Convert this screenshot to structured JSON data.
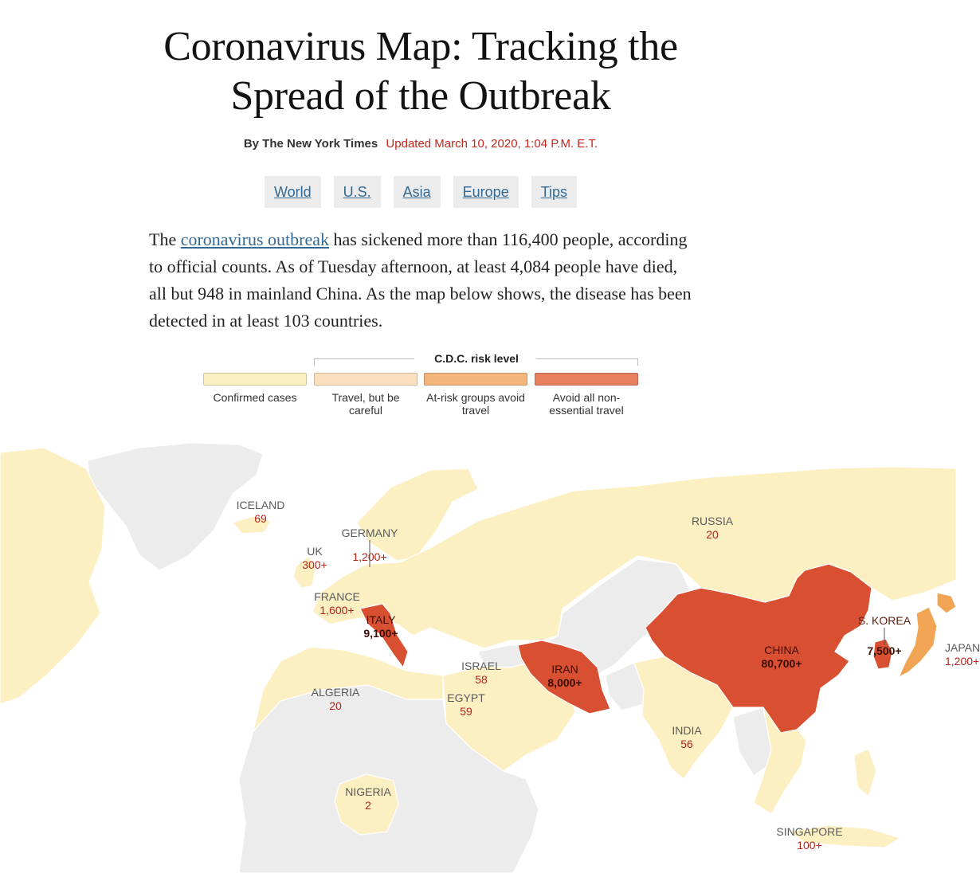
{
  "article": {
    "headline_line1": "Coronavirus Map: Tracking the",
    "headline_line2": "Spread of the Outbreak",
    "byline": "By The New York Times",
    "updated": "Updated March 10, 2020, 1:04 P.M. E.T."
  },
  "nav": {
    "world": "World",
    "us": "U.S.",
    "asia": "Asia",
    "europe": "Europe",
    "tips": "Tips"
  },
  "intro": {
    "before_link": "The ",
    "link_text": "coronavirus outbreak",
    "after_link": " has sickened more than 116,400 people, according to official counts. As of Tuesday afternoon, at least 4,084 people have died, all but 948 in mainland China. As the map below shows, the disease has been detected in at least 103 countries."
  },
  "legend": {
    "title": "C.D.C. risk level",
    "items": [
      {
        "label": "Confirmed cases",
        "color": "#fcefc2"
      },
      {
        "label": "Travel, but be careful",
        "color": "#fbe0bf"
      },
      {
        "label": "At-risk groups avoid travel",
        "color": "#f4b57a"
      },
      {
        "label": "Avoid all non-essential travel",
        "color": "#e8805f"
      }
    ]
  },
  "colors": {
    "confirmed": "#fcefc2",
    "level3": "#d94f31",
    "level2": "#f2a455",
    "no_cases": "#ececec",
    "border": "#ffffff",
    "ocean": "#ffffff"
  },
  "map": {
    "labels": [
      {
        "name": "ICELAND",
        "count": "69"
      },
      {
        "name": "GERMANY",
        "count": "1,200+"
      },
      {
        "name": "UK",
        "count": "300+"
      },
      {
        "name": "FRANCE",
        "count": "1,600+"
      },
      {
        "name": "ITALY",
        "count": "9,100+"
      },
      {
        "name": "ISRAEL",
        "count": "58"
      },
      {
        "name": "EGYPT",
        "count": "59"
      },
      {
        "name": "ALGERIA",
        "count": "20"
      },
      {
        "name": "NIGERIA",
        "count": "2"
      },
      {
        "name": "IRAN",
        "count": "8,000+"
      },
      {
        "name": "RUSSIA",
        "count": "20"
      },
      {
        "name": "CHINA",
        "count": "80,700+"
      },
      {
        "name": "S. KOREA",
        "count": "7,500+"
      },
      {
        "name": "JAPAN",
        "count": "1,200+"
      },
      {
        "name": "INDIA",
        "count": "56"
      },
      {
        "name": "SINGAPORE",
        "count": "100+"
      }
    ]
  }
}
